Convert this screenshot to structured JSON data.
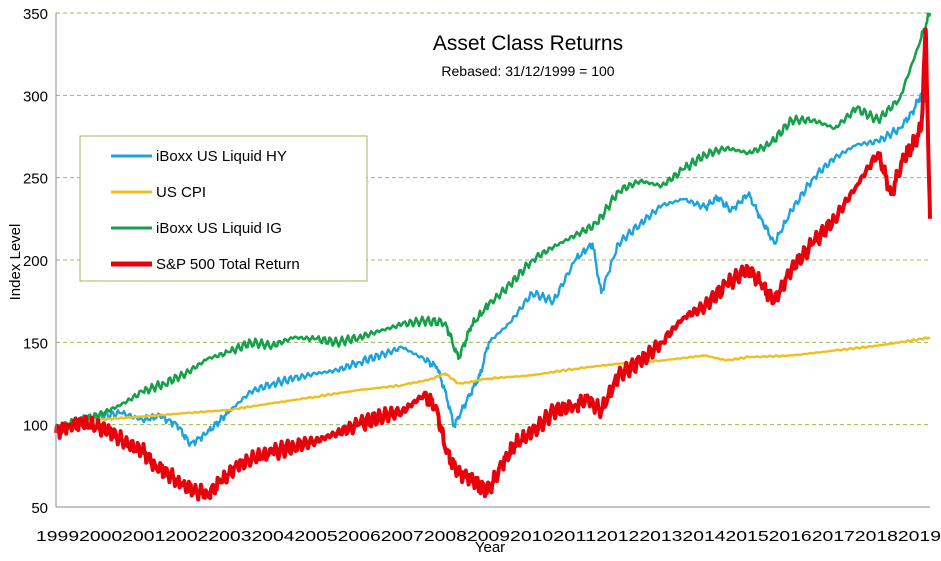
{
  "chart_data": {
    "type": "line",
    "title": "Asset Class Returns",
    "subtitle": "Rebased: 31/12/1999 = 100",
    "xlabel": "Year",
    "ylabel": "Index Level",
    "xlim": [
      1999,
      2019.2
    ],
    "ylim": [
      50,
      350
    ],
    "yticks": [
      50,
      100,
      150,
      200,
      250,
      300,
      350
    ],
    "xticks": [
      "1999",
      "2000",
      "2001",
      "2002",
      "2003",
      "2004",
      "2005",
      "2006",
      "2007",
      "2008",
      "2009",
      "2010",
      "2011",
      "2012",
      "2013",
      "2014",
      "2015",
      "2016",
      "2017",
      "2018",
      "2019"
    ],
    "grid": "horizontal dashed",
    "legend_position": "left-middle",
    "colors": {
      "grid": "#9BBB59",
      "hy": "#1CA3DE",
      "cpi": "#F0BE1E",
      "ig": "#17A04A",
      "spx": "#E8000B"
    },
    "series": [
      {
        "name": "iBoxx US Liquid HY",
        "color_key": "hy",
        "x": [
          1999.0,
          1999.5,
          2000.0,
          2000.5,
          2001.0,
          2001.4,
          2001.8,
          2002.1,
          2002.5,
          2002.8,
          2003.0,
          2003.5,
          2004.0,
          2004.5,
          2005.0,
          2005.5,
          2006.0,
          2006.5,
          2007.0,
          2007.5,
          2007.8,
          2008.0,
          2008.2,
          2008.5,
          2008.8,
          2009.0,
          2009.5,
          2010.0,
          2010.5,
          2011.0,
          2011.4,
          2011.6,
          2012.0,
          2012.5,
          2013.0,
          2013.5,
          2014.0,
          2014.3,
          2014.6,
          2015.0,
          2015.3,
          2015.6,
          2016.0,
          2016.5,
          2017.0,
          2017.5,
          2018.0,
          2018.5,
          2018.8,
          2019.0,
          2019.1
        ],
        "y": [
          97,
          100,
          105,
          107,
          103,
          105,
          100,
          88,
          95,
          103,
          108,
          120,
          125,
          128,
          131,
          133,
          138,
          142,
          147,
          140,
          135,
          120,
          99,
          115,
          130,
          150,
          162,
          180,
          175,
          200,
          210,
          180,
          210,
          222,
          233,
          237,
          232,
          238,
          230,
          240,
          225,
          210,
          230,
          250,
          262,
          270,
          272,
          280,
          290,
          301,
          298
        ]
      },
      {
        "name": "US CPI",
        "color_key": "cpi",
        "x": [
          1999.0,
          2000.0,
          2001.0,
          2002.0,
          2003.0,
          2004.0,
          2005.0,
          2006.0,
          2007.0,
          2007.7,
          2008.0,
          2008.3,
          2009.0,
          2010.0,
          2011.0,
          2012.0,
          2013.0,
          2014.0,
          2014.5,
          2015.0,
          2016.0,
          2017.0,
          2018.0,
          2018.5,
          2019.0,
          2019.2
        ],
        "y": [
          99,
          103,
          105,
          107,
          109,
          113,
          117,
          121,
          124,
          128,
          131,
          125,
          128,
          130,
          134,
          137,
          139,
          142,
          139,
          141,
          142,
          145,
          148,
          150,
          152,
          153
        ]
      },
      {
        "name": "iBoxx US Liquid IG",
        "color_key": "ig",
        "x": [
          1999.0,
          1999.5,
          2000.0,
          2000.5,
          2001.0,
          2001.5,
          2002.0,
          2002.5,
          2003.0,
          2003.5,
          2004.0,
          2004.5,
          2005.0,
          2005.5,
          2006.0,
          2006.5,
          2007.0,
          2007.5,
          2008.0,
          2008.3,
          2008.6,
          2009.0,
          2009.5,
          2010.0,
          2010.5,
          2011.0,
          2011.5,
          2012.0,
          2012.5,
          2013.0,
          2013.5,
          2014.0,
          2014.5,
          2015.0,
          2015.5,
          2016.0,
          2016.5,
          2017.0,
          2017.5,
          2018.0,
          2018.5,
          2019.0,
          2019.2
        ],
        "y": [
          97,
          102,
          106,
          112,
          120,
          125,
          131,
          140,
          144,
          150,
          148,
          153,
          152,
          150,
          153,
          157,
          161,
          163,
          162,
          140,
          160,
          173,
          185,
          200,
          208,
          215,
          222,
          242,
          248,
          245,
          255,
          264,
          268,
          265,
          270,
          285,
          285,
          280,
          292,
          285,
          298,
          335,
          350
        ]
      },
      {
        "name": "S&P 500 Total Return",
        "color_key": "spx",
        "x": [
          1999.0,
          1999.3,
          1999.6,
          2000.0,
          2000.3,
          2000.6,
          2001.0,
          2001.3,
          2001.6,
          2001.9,
          2002.2,
          2002.5,
          2002.8,
          2003.2,
          2003.6,
          2004.0,
          2004.5,
          2005.0,
          2005.5,
          2006.0,
          2006.5,
          2007.0,
          2007.5,
          2007.8,
          2008.0,
          2008.3,
          2008.6,
          2008.8,
          2009.0,
          2009.3,
          2009.6,
          2010.0,
          2010.5,
          2011.0,
          2011.3,
          2011.6,
          2012.0,
          2012.5,
          2013.0,
          2013.5,
          2014.0,
          2014.5,
          2015.0,
          2015.3,
          2015.6,
          2016.0,
          2016.5,
          2017.0,
          2017.5,
          2018.0,
          2018.3,
          2018.6,
          2018.8,
          2019.0,
          2019.1,
          2019.2
        ],
        "y": [
          95,
          100,
          101,
          98,
          95,
          89,
          84,
          75,
          70,
          63,
          60,
          58,
          65,
          75,
          80,
          83,
          87,
          90,
          95,
          100,
          105,
          108,
          118,
          110,
          85,
          70,
          68,
          62,
          60,
          75,
          88,
          95,
          108,
          112,
          115,
          108,
          130,
          138,
          150,
          165,
          172,
          185,
          195,
          185,
          175,
          195,
          210,
          225,
          245,
          265,
          240,
          262,
          270,
          280,
          340,
          225
        ]
      }
    ]
  }
}
